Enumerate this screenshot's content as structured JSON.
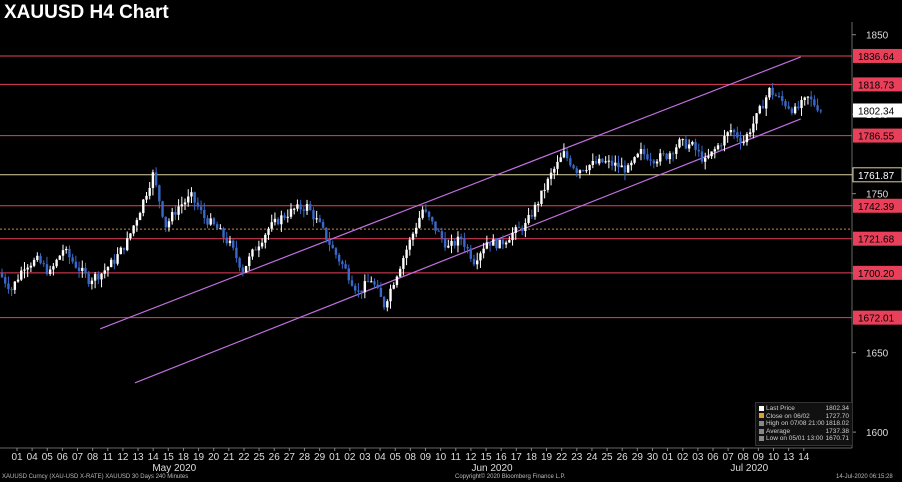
{
  "chart_data": {
    "type": "candlestick",
    "title": "XAUUSD H4 Chart",
    "ylim": [
      1590,
      1858
    ],
    "y_ticks": [
      1600,
      1650,
      1700,
      1750,
      1800,
      1850
    ],
    "x_day_labels": [
      "01",
      "04",
      "05",
      "06",
      "07",
      "08",
      "11",
      "12",
      "13",
      "14",
      "15",
      "18",
      "19",
      "20",
      "21",
      "22",
      "25",
      "26",
      "27",
      "28",
      "29",
      "01",
      "02",
      "03",
      "04",
      "05",
      "08",
      "09",
      "10",
      "11",
      "12",
      "15",
      "16",
      "17",
      "18",
      "19",
      "22",
      "23",
      "24",
      "25",
      "26",
      "29",
      "30",
      "01",
      "02",
      "03",
      "06",
      "07",
      "08",
      "09",
      "10",
      "13",
      "14"
    ],
    "x_month_labels": [
      {
        "label": "May 2020",
        "day_index": 10
      },
      {
        "label": "Jun 2020",
        "day_index": 31
      },
      {
        "label": "Jul 2020",
        "day_index": 48
      }
    ],
    "horizontal_levels": [
      {
        "value": 1836.64,
        "label": "1836.64",
        "style": "red"
      },
      {
        "value": 1818.73,
        "label": "1818.73",
        "style": "red"
      },
      {
        "value": 1786.55,
        "label": "1786.55",
        "style": "red"
      },
      {
        "value": 1761.87,
        "label": "1761.87",
        "style": "tan"
      },
      {
        "value": 1742.39,
        "label": "1742.39",
        "style": "red"
      },
      {
        "value": 1727.7,
        "label": "",
        "style": "dotted-orange"
      },
      {
        "value": 1721.68,
        "label": "1721.68",
        "style": "red"
      },
      {
        "value": 1700.2,
        "label": "1700.20",
        "style": "red"
      },
      {
        "value": 1672.01,
        "label": "1672.01",
        "style": "red"
      }
    ],
    "last_price_label": "1802.34",
    "channel_lines": [
      {
        "from": [
          5.5,
          1665
        ],
        "to": [
          51.8,
          1836
        ]
      },
      {
        "from": [
          7.8,
          1631
        ],
        "to": [
          51.8,
          1797
        ]
      }
    ],
    "daily_closes": [
      1700,
      1690,
      1705,
      1708,
      1700,
      1715,
      1705,
      1696,
      1700,
      1708,
      1720,
      1740,
      1762,
      1730,
      1742,
      1748,
      1735,
      1728,
      1718,
      1702,
      1716,
      1728,
      1735,
      1740,
      1742,
      1730,
      1715,
      1702,
      1688,
      1696,
      1680,
      1700,
      1720,
      1740,
      1728,
      1716,
      1722,
      1708,
      1720,
      1718,
      1725,
      1730,
      1745,
      1762,
      1775,
      1765,
      1768,
      1770,
      1768,
      1765,
      1776,
      1772,
      1774,
      1782,
      1780,
      1770,
      1780,
      1790,
      1783,
      1798,
      1815,
      1808,
      1802,
      1810,
      1803
    ],
    "legend": [
      {
        "label": "Last Price",
        "value": "1802.34",
        "color": "#ffffff"
      },
      {
        "label": "Close on 06/02",
        "value": "1727.70",
        "color": "#e0a030"
      },
      {
        "label": "High on 07/08 21:00",
        "value": "1818.02",
        "color": "#888888"
      },
      {
        "label": "Average",
        "value": "1737.38",
        "color": "#888888"
      },
      {
        "label": "Low on 05/01 13:00",
        "value": "1670.71",
        "color": "#888888"
      }
    ],
    "footer_left": "XAUUSD Curncy (XAU-USD X-RATE) XAUUSD 30 Days 240 Minutes",
    "footer_center": "Copyright© 2020 Bloomberg Finance L.P.",
    "footer_right": "14-Jul-2020 06:15:28"
  },
  "colors": {
    "level_red": "#e8405a",
    "level_tan": "#d8d0a0",
    "dotted_orange": "#c8873a",
    "channel": "#c070e0",
    "label_red_bg": "#e8405a",
    "candle_up": "#ffffff",
    "candle_down": "#3a68c8"
  }
}
